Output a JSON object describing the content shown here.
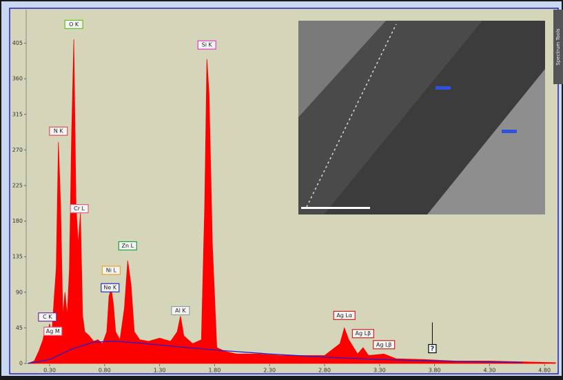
{
  "chart_data": {
    "type": "spectrum",
    "xlim": [
      0.09,
      4.91
    ],
    "ylim": [
      0,
      445
    ],
    "yticks": [
      0,
      45,
      90,
      135,
      180,
      225,
      270,
      315,
      360,
      405
    ],
    "xticks": [
      {
        "value": 0.3,
        "label": "0.30"
      },
      {
        "value": 0.8,
        "label": "0.80"
      },
      {
        "value": 1.3,
        "label": "1.30"
      },
      {
        "value": 1.8,
        "label": "1.80"
      },
      {
        "value": 2.3,
        "label": "2.30"
      },
      {
        "value": 2.8,
        "label": "2.80"
      },
      {
        "value": 3.3,
        "label": "3.30"
      },
      {
        "value": 3.8,
        "label": "3.80"
      },
      {
        "value": 4.3,
        "label": "4.30"
      },
      {
        "value": 4.8,
        "label": "4.80"
      }
    ],
    "series": [
      {
        "color": "#ff0000",
        "fill": true,
        "x": [
          0.1,
          0.16,
          0.2,
          0.24,
          0.26,
          0.28,
          0.3,
          0.32,
          0.34,
          0.36,
          0.38,
          0.4,
          0.42,
          0.44,
          0.46,
          0.48,
          0.5,
          0.52,
          0.54,
          0.56,
          0.58,
          0.6,
          0.62,
          0.66,
          0.7,
          0.74,
          0.78,
          0.82,
          0.84,
          0.86,
          0.88,
          0.9,
          0.94,
          0.98,
          1.01,
          1.04,
          1.07,
          1.12,
          1.2,
          1.3,
          1.4,
          1.46,
          1.49,
          1.52,
          1.6,
          1.68,
          1.71,
          1.73,
          1.75,
          1.78,
          1.82,
          1.9,
          2.0,
          2.2,
          2.4,
          2.6,
          2.8,
          2.94,
          2.98,
          3.02,
          3.1,
          3.15,
          3.2,
          3.34,
          3.45,
          3.7,
          4.0,
          4.3,
          4.6,
          4.9
        ],
        "values": [
          0,
          3,
          15,
          30,
          45,
          38,
          50,
          35,
          80,
          120,
          280,
          200,
          60,
          90,
          60,
          120,
          290,
          410,
          200,
          150,
          190,
          60,
          40,
          35,
          28,
          30,
          25,
          40,
          85,
          95,
          75,
          40,
          30,
          70,
          130,
          100,
          40,
          30,
          28,
          32,
          28,
          40,
          60,
          35,
          25,
          30,
          200,
          385,
          340,
          150,
          20,
          15,
          12,
          12,
          10,
          10,
          10,
          25,
          45,
          30,
          12,
          20,
          10,
          12,
          6,
          5,
          3,
          3,
          2,
          1
        ]
      },
      {
        "color": "#2020d0",
        "fill": false,
        "x": [
          0.1,
          0.3,
          0.5,
          0.7,
          0.9,
          1.1,
          1.4,
          1.8,
          2.3,
          2.8,
          3.3,
          3.8,
          4.3,
          4.6
        ],
        "values": [
          0,
          5,
          18,
          27,
          28,
          26,
          22,
          17,
          12,
          8,
          5,
          3,
          2,
          1
        ]
      }
    ],
    "annotations": [
      {
        "text": "C  K",
        "x": 0.28,
        "y": 50,
        "color": "#7030a0"
      },
      {
        "text": "Ag M",
        "x": 0.33,
        "y": 32,
        "color": "#e06080"
      },
      {
        "text": "N  K",
        "x": 0.38,
        "y": 285,
        "color": "#e05050"
      },
      {
        "text": "O  K",
        "x": 0.52,
        "y": 420,
        "color": "#60c020"
      },
      {
        "text": "Cr L",
        "x": 0.57,
        "y": 187,
        "color": "#e06080"
      },
      {
        "text": "Ni L",
        "x": 0.86,
        "y": 109,
        "color": "#f0a020"
      },
      {
        "text": "Ne K",
        "x": 0.85,
        "y": 87,
        "color": "#2030c0"
      },
      {
        "text": "Zn L",
        "x": 1.01,
        "y": 140,
        "color": "#20a040"
      },
      {
        "text": "Al K",
        "x": 1.49,
        "y": 58,
        "color": "#90a0a0"
      },
      {
        "text": "Si K",
        "x": 1.73,
        "y": 394,
        "color": "#e040c0"
      },
      {
        "text": "Ag Lα",
        "x": 2.98,
        "y": 52,
        "color": "#d02020"
      },
      {
        "text": "Ag Lβ",
        "x": 3.15,
        "y": 29,
        "color": "#d02020"
      },
      {
        "text": "Ag Lβ",
        "x": 3.34,
        "y": 15,
        "color": "#d02020"
      },
      {
        "text": "?",
        "x": 3.78,
        "y": 10,
        "color": "#000000"
      }
    ],
    "side_tab": "Spectrum Tools"
  }
}
